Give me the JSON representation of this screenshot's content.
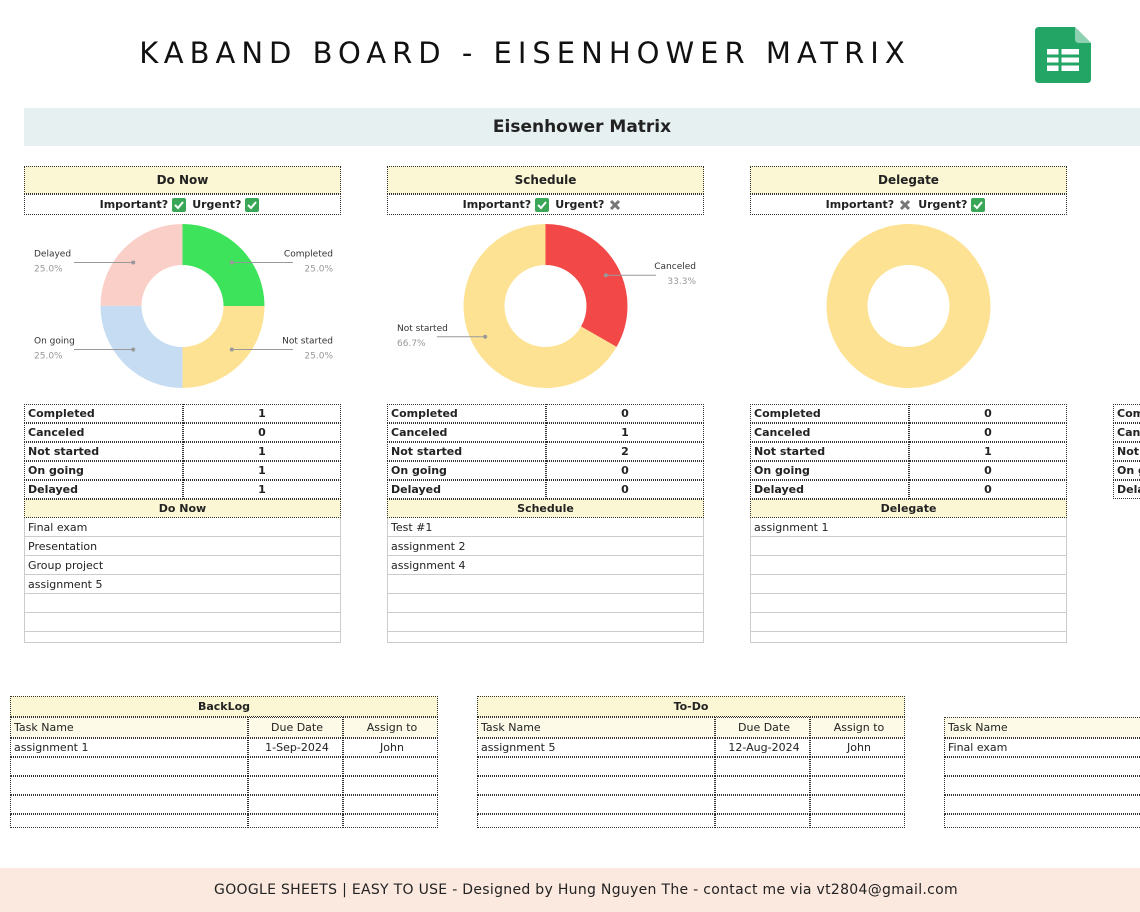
{
  "header": {
    "title": "KABAND BOARD - EISENHOWER MATRIX"
  },
  "matrix": {
    "title": "Eisenhower Matrix",
    "important_label": "Important?",
    "urgent_label": "Urgent?",
    "quadrants": [
      {
        "title": "Do Now",
        "important": true,
        "urgent": true,
        "chart": {
          "type": "pie",
          "categories": [
            "Completed",
            "Not started",
            "On going",
            "Delayed"
          ],
          "values": [
            25,
            25,
            25,
            25
          ],
          "value_labels": [
            "25.0%",
            "25.0%",
            "25.0%",
            "25.0%"
          ],
          "colors": [
            "#3ee35c",
            "#fde293",
            "#c5dcf3",
            "#f9cfc8"
          ]
        },
        "status_counts": [
          [
            "Completed",
            1
          ],
          [
            "Canceled",
            0
          ],
          [
            "Not started",
            1
          ],
          [
            "On going",
            1
          ],
          [
            "Delayed",
            1
          ]
        ],
        "task_list_title": "Do Now",
        "tasks": [
          "Final exam",
          "Presentation",
          "Group project",
          "assignment 5"
        ]
      },
      {
        "title": "Schedule",
        "important": true,
        "urgent": false,
        "chart": {
          "type": "pie",
          "categories": [
            "Canceled",
            "Not started"
          ],
          "values": [
            33.3,
            66.7
          ],
          "value_labels": [
            "33.3%",
            "66.7%"
          ],
          "colors": [
            "#f24848",
            "#fde293"
          ]
        },
        "status_counts": [
          [
            "Completed",
            0
          ],
          [
            "Canceled",
            1
          ],
          [
            "Not started",
            2
          ],
          [
            "On going",
            0
          ],
          [
            "Delayed",
            0
          ]
        ],
        "task_list_title": "Schedule",
        "tasks": [
          "Test #1",
          "assignment 2",
          "assignment 4"
        ]
      },
      {
        "title": "Delegate",
        "important": false,
        "urgent": true,
        "chart": {
          "type": "pie",
          "categories": [
            null
          ],
          "values": [
            100
          ],
          "colors": [
            "#fde293"
          ]
        },
        "status_counts": [
          [
            "Completed",
            0
          ],
          [
            "Canceled",
            0
          ],
          [
            "Not started",
            1
          ],
          [
            "On going",
            0
          ],
          [
            "Delayed",
            0
          ]
        ],
        "task_list_title": "Delegate",
        "tasks": [
          "assignment 1"
        ]
      },
      {
        "status_labels": [
          "Completed",
          "Canceled",
          "Not started",
          "On going",
          "Delayed"
        ]
      }
    ]
  },
  "task_tables": [
    {
      "title": "BackLog",
      "columns": [
        "Task Name",
        "Due Date",
        "Assign to"
      ],
      "rows": [
        [
          "assignment 1",
          "1-Sep-2024",
          "John"
        ]
      ]
    },
    {
      "title": "To-Do",
      "columns": [
        "Task Name",
        "Due Date",
        "Assign to"
      ],
      "rows": [
        [
          "assignment 5",
          "12-Aug-2024",
          "John"
        ]
      ]
    },
    {
      "columns": [
        "Task Name"
      ],
      "rows": [
        [
          "Final exam"
        ]
      ]
    }
  ],
  "footer": {
    "text": "GOOGLE SHEETS | EASY TO USE - Designed by Hung Nguyen The - contact me via vt2804@gmail.com"
  }
}
